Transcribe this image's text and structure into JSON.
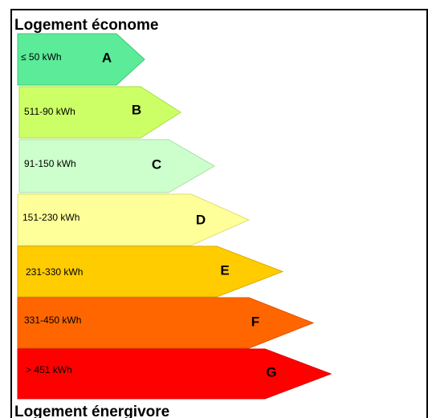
{
  "header": {
    "title": "Logement économe"
  },
  "classes": [
    {
      "range": "≤ 50 kWh",
      "letter": "A"
    },
    {
      "range": "511-90 kWh",
      "letter": "B"
    },
    {
      "range": "91-150 kWh",
      "letter": "C"
    },
    {
      "range": "151-230 kWh",
      "letter": "D"
    },
    {
      "range": "231-330 kWh",
      "letter": "E"
    },
    {
      "range": "331-450 kWh",
      "letter": "F"
    },
    {
      "range": "> 451 kWh",
      "letter": "G"
    }
  ],
  "footer": {
    "title": "Logement énergivore"
  }
}
